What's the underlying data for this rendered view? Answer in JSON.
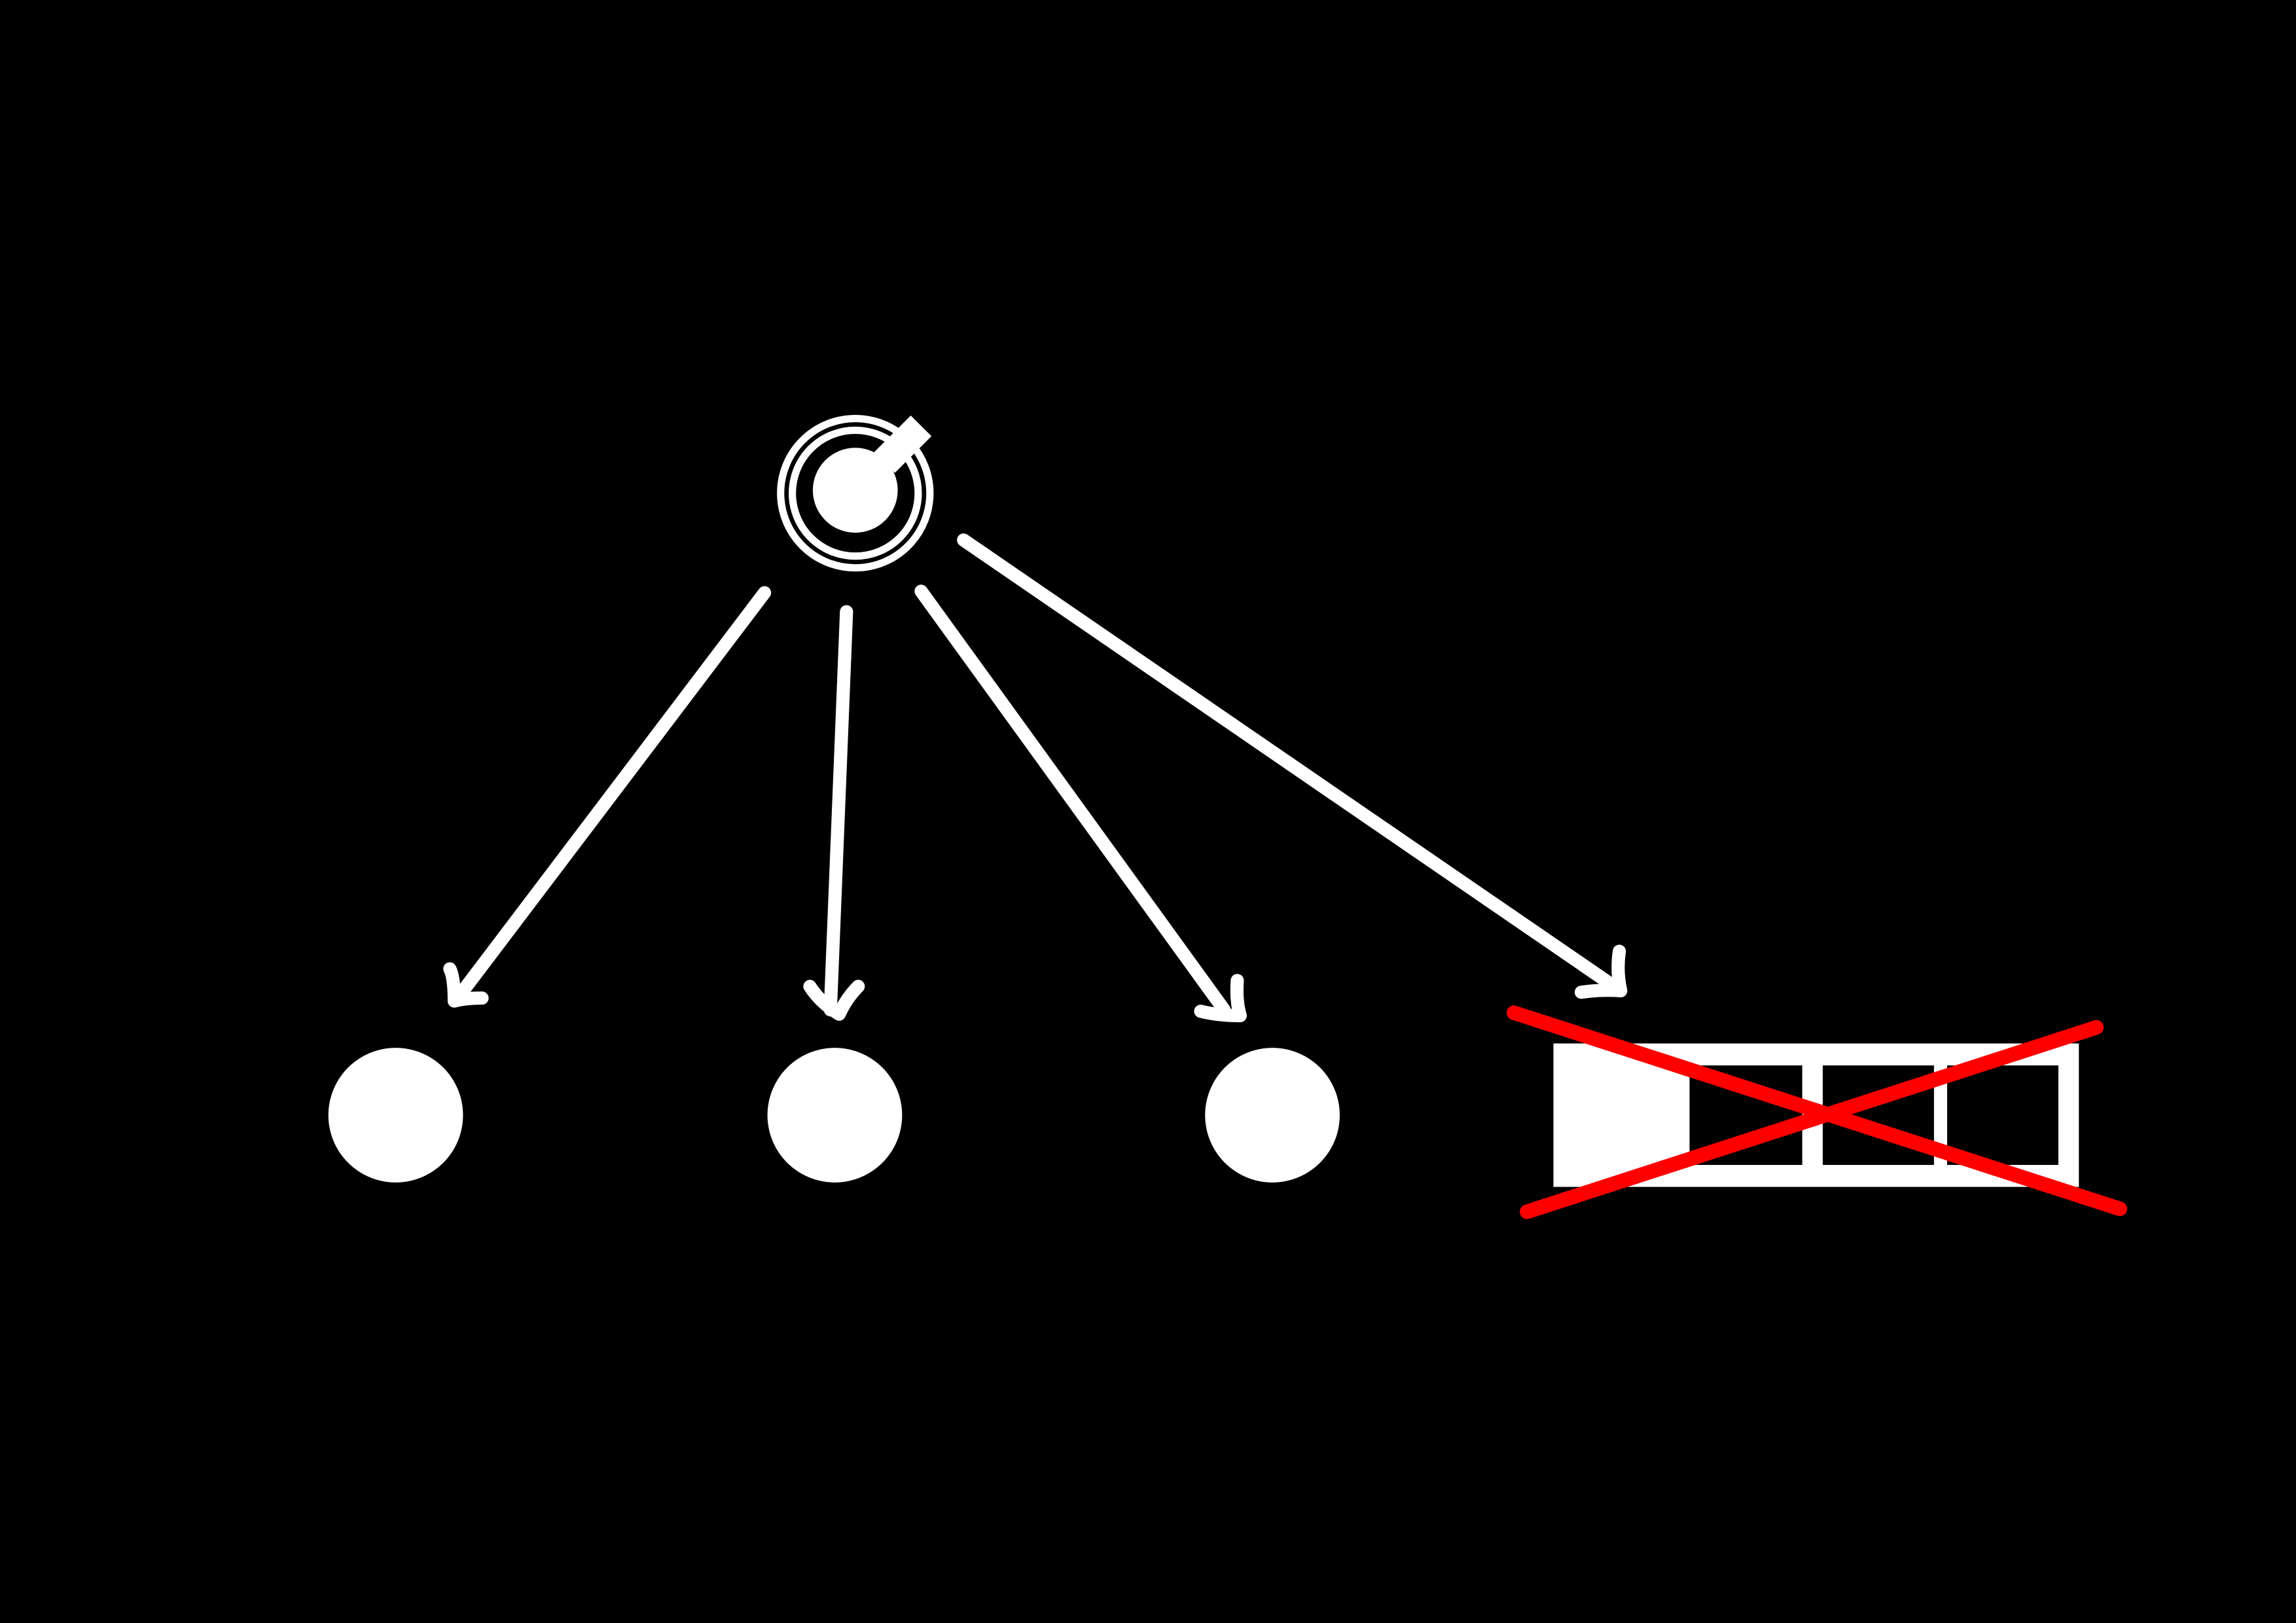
{
  "colors": {
    "background": "#000000",
    "foreground": "#ffffff",
    "cross": "#ff0000"
  },
  "diagram": {
    "source": {
      "icon": "joystick-icon"
    },
    "targets": [
      {
        "kind": "node",
        "icon": "circle-node-icon"
      },
      {
        "kind": "node",
        "icon": "circle-node-icon"
      },
      {
        "kind": "node",
        "icon": "circle-node-icon"
      },
      {
        "kind": "progress-bar",
        "icon": "progress-bar-icon",
        "crossed_out": true,
        "progress": 0.27
      }
    ]
  }
}
